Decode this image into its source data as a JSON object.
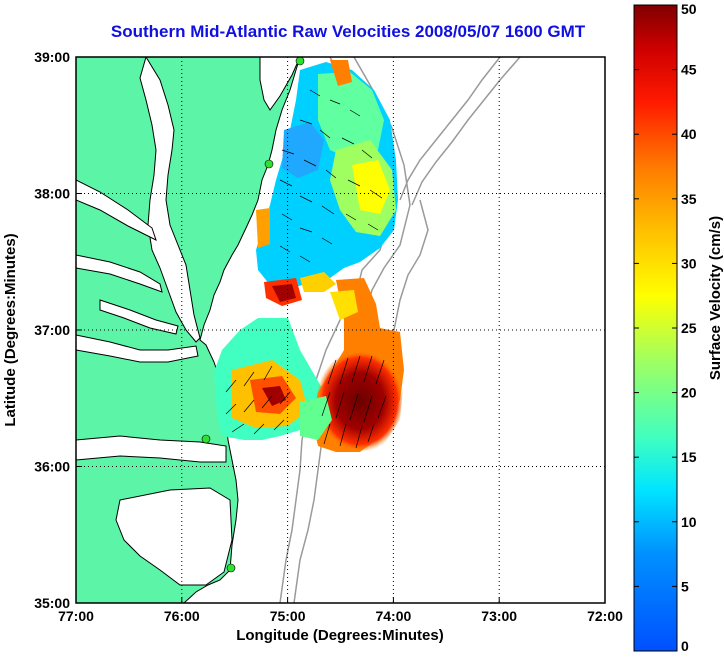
{
  "title": "Southern Mid-Atlantic Raw Velocities 2008/05/07 1600 GMT",
  "xlabel": "Longitude (Degrees:Minutes)",
  "ylabel": "Latitude (Degrees:Minutes)",
  "colorbar_label": "Surface Velocity (cm/s)",
  "x_ticks": [
    {
      "value": -77,
      "label": "77:00"
    },
    {
      "value": -76,
      "label": "76:00"
    },
    {
      "value": -75,
      "label": "75:00"
    },
    {
      "value": -74,
      "label": "74:00"
    },
    {
      "value": -73,
      "label": "73:00"
    },
    {
      "value": -72,
      "label": "72:00"
    }
  ],
  "y_ticks": [
    {
      "value": 35,
      "label": "35:00"
    },
    {
      "value": 36,
      "label": "36:00"
    },
    {
      "value": 37,
      "label": "37:00"
    },
    {
      "value": 38,
      "label": "38:00"
    },
    {
      "value": 39,
      "label": "39:00"
    }
  ],
  "colorbar_ticks": [
    "0",
    "5",
    "10",
    "15",
    "20",
    "25",
    "30",
    "35",
    "40",
    "45",
    "50"
  ],
  "colors": {
    "land": "#5cf5a8",
    "ocean": "#ffffff",
    "coast": "#000000",
    "bathymetry": "#9a9a9a",
    "station": "#30e030",
    "title": "#1010e0"
  },
  "chart_data": {
    "type": "heatmap",
    "xlim": [
      -77,
      -72
    ],
    "ylim": [
      35,
      39
    ],
    "clim": [
      0,
      50
    ],
    "colormap": "jet",
    "grid": true,
    "stations": [
      {
        "lon": -74.87,
        "lat": 39.0
      },
      {
        "lon": -75.1,
        "lat": 38.22
      },
      {
        "lon": -75.9,
        "lat": 36.2
      },
      {
        "lon": -75.52,
        "lat": 35.23
      }
    ],
    "velocity_regions": [
      {
        "name": "north",
        "speed_range": [
          5,
          35
        ],
        "dominant_speed": 15
      },
      {
        "name": "south-central",
        "speed_range": [
          15,
          50
        ],
        "dominant_speed": 50
      }
    ]
  }
}
